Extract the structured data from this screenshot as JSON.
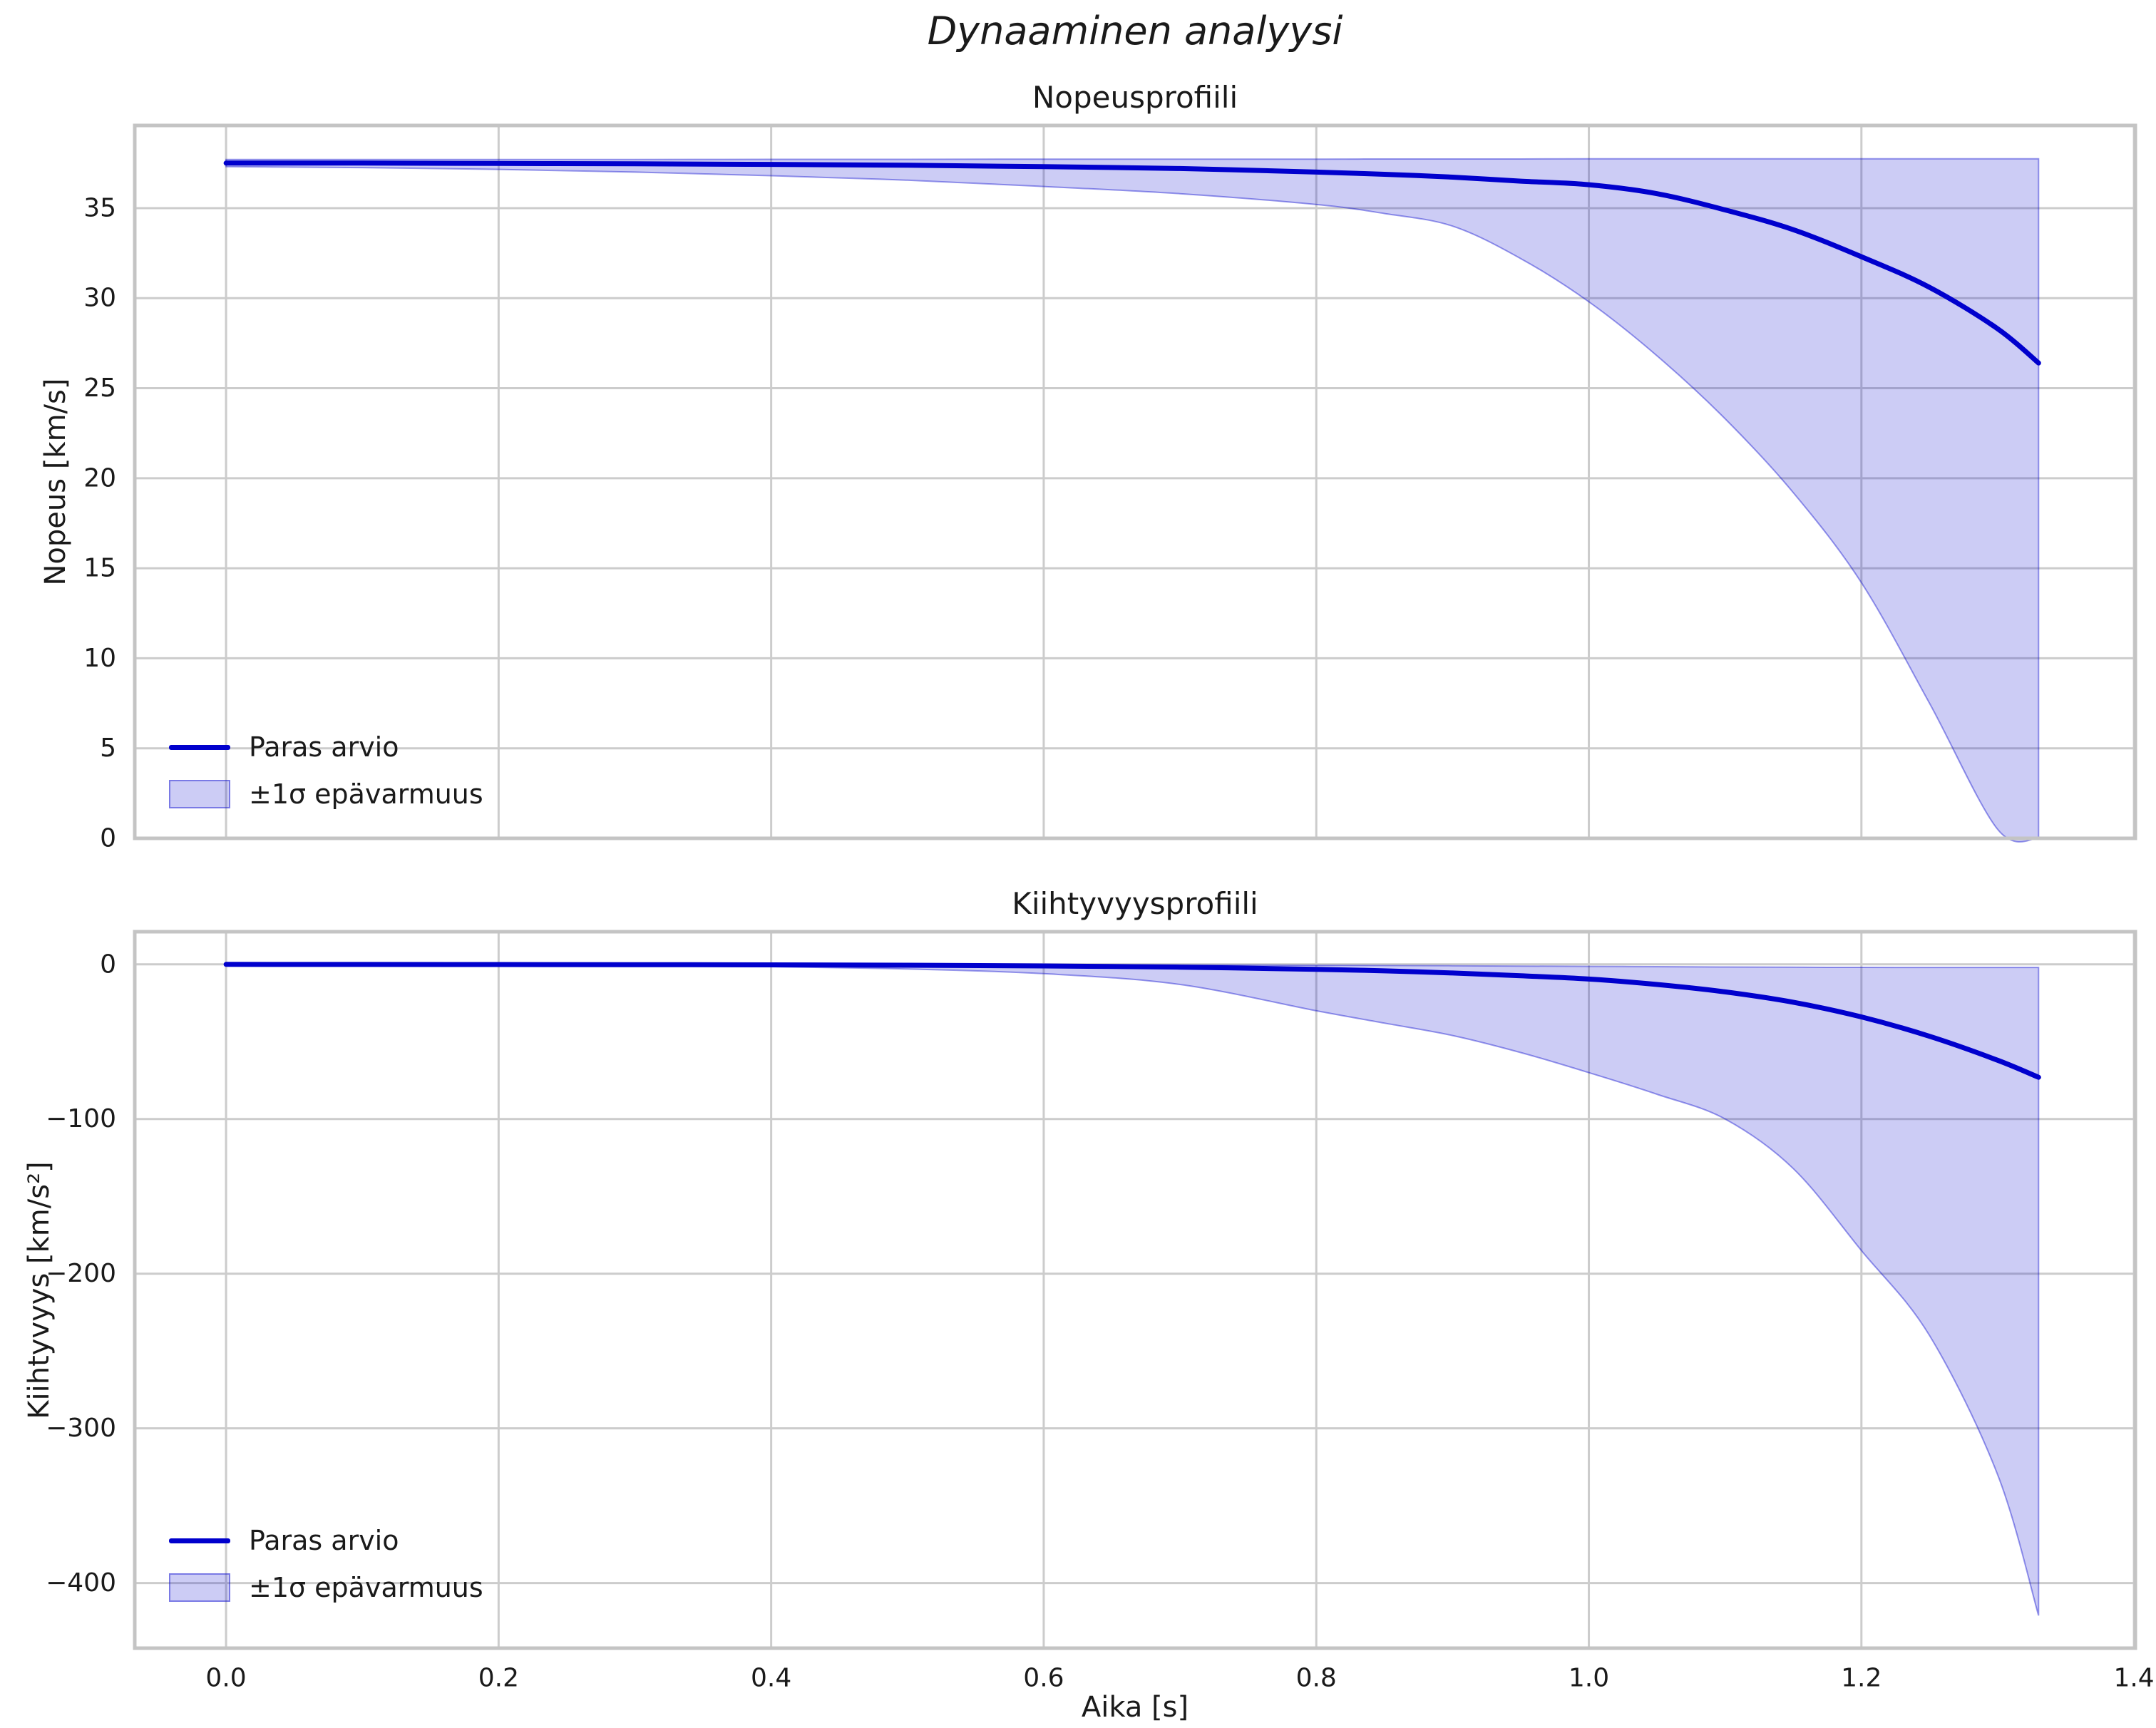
{
  "figure": {
    "suptitle": "Dynaaminen analyysi",
    "background": "#ffffff",
    "text_color": "#1a1a1a",
    "grid_color": "#cccccc",
    "spine_color": "#c4c4c4",
    "line_color": "#0000cd",
    "band_fill": "rgba(0,0,205,0.20)",
    "band_edge": "rgba(0,0,205,0.40)"
  },
  "legend": {
    "line_label": "Paras arvio",
    "band_label": "±1σ epävarmuus"
  },
  "chart_data": [
    {
      "type": "line",
      "title": "Nopeusprofiili",
      "ylabel": "Nopeus [km/s]",
      "xlabel": "",
      "grid": true,
      "legend_position": "lower left",
      "xlim": [
        -0.067,
        1.401
      ],
      "ylim": [
        0,
        39.59
      ],
      "xticks": [
        0.0,
        0.2,
        0.4,
        0.6,
        0.8,
        1.0,
        1.2,
        1.4
      ],
      "xtick_labels": null,
      "yticks": [
        0,
        5,
        10,
        15,
        20,
        25,
        30,
        35
      ],
      "ytick_labels": [
        "0",
        "5",
        "10",
        "15",
        "20",
        "25",
        "30",
        "35"
      ],
      "x": [
        0.0,
        0.1,
        0.2,
        0.3,
        0.4,
        0.5,
        0.6,
        0.7,
        0.8,
        0.85,
        0.9,
        0.95,
        1.0,
        1.05,
        1.1,
        1.15,
        1.2,
        1.25,
        1.3,
        1.33
      ],
      "best": [
        37.5,
        37.5,
        37.48,
        37.46,
        37.43,
        37.38,
        37.3,
        37.2,
        37.0,
        36.88,
        36.72,
        36.5,
        36.3,
        35.8,
        34.9,
        33.8,
        32.3,
        30.6,
        28.3,
        26.4
      ],
      "band_upper": [
        37.7,
        37.7,
        37.7,
        37.7,
        37.71,
        37.71,
        37.72,
        37.72,
        37.72,
        37.73,
        37.73,
        37.73,
        37.74,
        37.74,
        37.74,
        37.74,
        37.74,
        37.74,
        37.74,
        37.74
      ],
      "band_lower": [
        37.3,
        37.25,
        37.15,
        37.0,
        36.8,
        36.55,
        36.2,
        35.8,
        35.2,
        34.7,
        34.0,
        32.2,
        29.8,
        26.8,
        23.3,
        19.2,
        14.2,
        7.5,
        0.5,
        0.0
      ]
    },
    {
      "type": "line",
      "title": "Kiihtyvyysprofiili",
      "ylabel": "Kiihtyvyys [km/s²]",
      "xlabel": "Aika [s]",
      "grid": true,
      "legend_position": "lower left",
      "xlim": [
        -0.067,
        1.401
      ],
      "ylim": [
        -442.1,
        21.1
      ],
      "xticks": [
        0.0,
        0.2,
        0.4,
        0.6,
        0.8,
        1.0,
        1.2,
        1.4
      ],
      "xtick_labels": [
        "0.0",
        "0.2",
        "0.4",
        "0.6",
        "0.8",
        "1.0",
        "1.2",
        "1.4"
      ],
      "yticks": [
        0,
        -100,
        -200,
        -300,
        -400
      ],
      "ytick_labels": [
        "0",
        "−100",
        "−200",
        "−300",
        "−400"
      ],
      "x": [
        0.0,
        0.1,
        0.2,
        0.3,
        0.4,
        0.5,
        0.6,
        0.7,
        0.8,
        0.85,
        0.9,
        0.95,
        1.0,
        1.05,
        1.1,
        1.15,
        1.2,
        1.25,
        1.3,
        1.33
      ],
      "best": [
        -0.02,
        -0.05,
        -0.1,
        -0.18,
        -0.32,
        -0.55,
        -1.0,
        -1.8,
        -3.2,
        -4.2,
        -5.6,
        -7.4,
        -9.5,
        -13.0,
        -17.8,
        -24.5,
        -34.0,
        -46.5,
        -62.0,
        -73.0
      ],
      "band_upper": [
        0,
        0,
        0,
        -0.05,
        -0.1,
        -0.15,
        -0.25,
        -0.4,
        -0.6,
        -0.75,
        -0.9,
        -1.1,
        -1.3,
        -1.5,
        -1.7,
        -1.85,
        -1.95,
        -2.0,
        -2.0,
        -2.0
      ],
      "band_lower": [
        -0.05,
        -0.15,
        -0.3,
        -0.7,
        -1.5,
        -3.0,
        -6.0,
        -13.0,
        -30.0,
        -38.0,
        -46.0,
        -57.0,
        -70.0,
        -84.0,
        -100.0,
        -132.0,
        -185.0,
        -240.0,
        -330.0,
        -421.0
      ]
    }
  ]
}
